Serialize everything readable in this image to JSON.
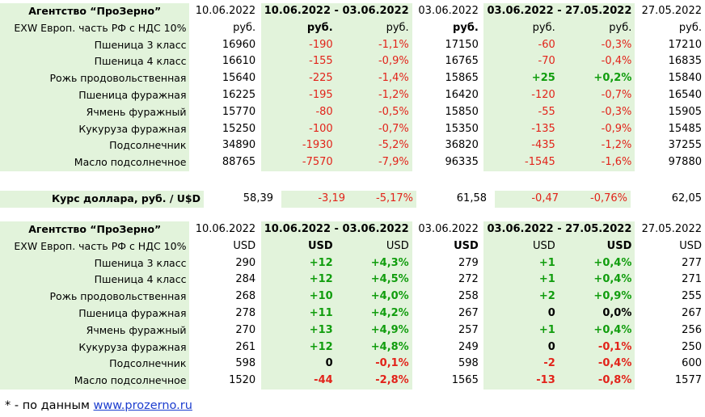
{
  "colors": {
    "negative": "#e2231a",
    "positive": "#119d0e",
    "highlight": "#e2f3db",
    "link": "#1d3ecf"
  },
  "rub": {
    "title": "Агентство “ПроЗерно”",
    "dates": [
      "10.06.2022",
      "10.06.2022 - 03.06.2022",
      "03.06.2022",
      "03.06.2022 - 27.05.2022",
      "27.05.2022"
    ],
    "basis": "EXW Европ. часть РФ с НДС 10%",
    "units": [
      "руб.",
      "руб.",
      "руб.",
      "руб.",
      "руб.",
      "руб.",
      "руб."
    ],
    "rows": [
      {
        "name": "Пшеница 3 класс",
        "v1": "16960",
        "d1": "-190",
        "p1": "-1,1%",
        "v2": "17150",
        "d2": "-60",
        "p2": "-0,3%",
        "v3": "17210"
      },
      {
        "name": "Пшеница 4 класс",
        "v1": "16610",
        "d1": "-155",
        "p1": "-0,9%",
        "v2": "16765",
        "d2": "-70",
        "p2": "-0,4%",
        "v3": "16835"
      },
      {
        "name": "Рожь продовольственная",
        "v1": "15640",
        "d1": "-225",
        "p1": "-1,4%",
        "v2": "15865",
        "d2": "+25",
        "p2": "+0,2%",
        "v3": "15840"
      },
      {
        "name": "Пшеница фуражная",
        "v1": "16225",
        "d1": "-195",
        "p1": "-1,2%",
        "v2": "16420",
        "d2": "-120",
        "p2": "-0,7%",
        "v3": "16540"
      },
      {
        "name": "Ячмень фуражный",
        "v1": "15770",
        "d1": "-80",
        "p1": "-0,5%",
        "v2": "15850",
        "d2": "-55",
        "p2": "-0,3%",
        "v3": "15905"
      },
      {
        "name": "Кукуруза фуражная",
        "v1": "15250",
        "d1": "-100",
        "p1": "-0,7%",
        "v2": "15350",
        "d2": "-135",
        "p2": "-0,9%",
        "v3": "15485"
      },
      {
        "name": "Подсолнечник",
        "v1": "34890",
        "d1": "-1930",
        "p1": "-5,2%",
        "v2": "36820",
        "d2": "-435",
        "p2": "-1,2%",
        "v3": "37255"
      },
      {
        "name": "Масло подсолнечное",
        "v1": "88765",
        "d1": "-7570",
        "p1": "-7,9%",
        "v2": "96335",
        "d2": "-1545",
        "p2": "-1,6%",
        "v3": "97880"
      }
    ]
  },
  "fx": {
    "label": "Курс доллара, руб. / U$D",
    "v1": "58,39",
    "d1": "-3,19",
    "p1": "-5,17%",
    "v2": "61,58",
    "d2": "-0,47",
    "p2": "-0,76%",
    "v3": "62,05"
  },
  "usd": {
    "title": "Агентство “ПроЗерно”",
    "dates": [
      "10.06.2022",
      "10.06.2022 - 03.06.2022",
      "03.06.2022",
      "03.06.2022 - 27.05.2022",
      "27.05.2022"
    ],
    "basis": "EXW Европ. часть РФ с НДС 10%",
    "units": [
      "USD",
      "USD",
      "USD",
      "USD",
      "USD",
      "USD",
      "USD"
    ],
    "rows": [
      {
        "name": "Пшеница 3 класс",
        "v1": "290",
        "d1": "+12",
        "p1": "+4,3%",
        "v2": "279",
        "d2": "+1",
        "p2": "+0,4%",
        "v3": "277"
      },
      {
        "name": "Пшеница 4 класс",
        "v1": "284",
        "d1": "+12",
        "p1": "+4,5%",
        "v2": "272",
        "d2": "+1",
        "p2": "+0,4%",
        "v3": "271"
      },
      {
        "name": "Рожь продовольственная",
        "v1": "268",
        "d1": "+10",
        "p1": "+4,0%",
        "v2": "258",
        "d2": "+2",
        "p2": "+0,9%",
        "v3": "255"
      },
      {
        "name": "Пшеница фуражная",
        "v1": "278",
        "d1": "+11",
        "p1": "+4,2%",
        "v2": "267",
        "d2": "0",
        "p2": "0,0%",
        "v3": "267"
      },
      {
        "name": "Ячмень фуражный",
        "v1": "270",
        "d1": "+13",
        "p1": "+4,9%",
        "v2": "257",
        "d2": "+1",
        "p2": "+0,4%",
        "v3": "256"
      },
      {
        "name": "Кукуруза фуражная",
        "v1": "261",
        "d1": "+12",
        "p1": "+4,8%",
        "v2": "249",
        "d2": "0",
        "p2": "-0,1%",
        "v3": "250"
      },
      {
        "name": "Подсолнечник",
        "v1": "598",
        "d1": "0",
        "p1": "-0,1%",
        "v2": "598",
        "d2": "-2",
        "p2": "-0,4%",
        "v3": "600"
      },
      {
        "name": "Масло подсолнечное",
        "v1": "1520",
        "d1": "-44",
        "p1": "-2,8%",
        "v2": "1565",
        "d2": "-13",
        "p2": "-0,8%",
        "v3": "1577"
      }
    ]
  },
  "footer": {
    "prefix": "* - по данным ",
    "link": "www.prozerno.ru"
  }
}
